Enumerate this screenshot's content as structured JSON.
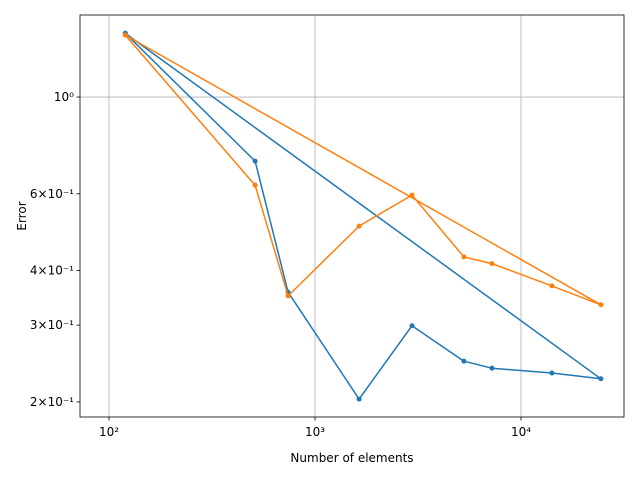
{
  "chart_data": {
    "type": "line",
    "xlabel": "Number of elements",
    "ylabel": "Error",
    "xscale": "log",
    "yscale": "log",
    "grid": true,
    "xlim": [
      72.3,
      31623
    ],
    "ylim": [
      0.1847,
      1.542
    ],
    "xticks": [
      {
        "value": 100,
        "label": "10²"
      },
      {
        "value": 1000,
        "label": "10³"
      },
      {
        "value": 10000,
        "label": "10⁴"
      }
    ],
    "yticks": [
      {
        "value": 0.2,
        "label": "2×10⁻¹"
      },
      {
        "value": 0.3,
        "label": "3×10⁻¹"
      },
      {
        "value": 0.4,
        "label": "4×10⁻¹"
      },
      {
        "value": 0.6,
        "label": "6×10⁻¹"
      },
      {
        "value": 1,
        "label": "10⁰"
      }
    ],
    "series": [
      {
        "color": "#1f77b4",
        "x": [
          120,
          512,
          740,
          1637,
          2958,
          5284,
          7227,
          14130,
          24430,
          120
        ],
        "values": [
          1.4,
          0.713,
          0.357,
          0.203,
          0.299,
          0.248,
          0.239,
          0.233,
          0.226,
          1.4
        ]
      },
      {
        "color": "#ff7f0e",
        "x": [
          120,
          512,
          740,
          1637,
          2958,
          5284,
          7227,
          14130,
          24430,
          120
        ],
        "values": [
          1.387,
          0.628,
          0.35,
          0.506,
          0.596,
          0.43,
          0.415,
          0.369,
          0.334,
          1.387
        ]
      }
    ]
  }
}
